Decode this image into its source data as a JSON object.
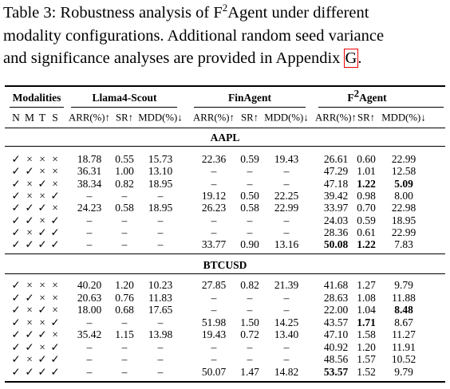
{
  "caption": [
    [
      "Table 3: Robustness analysis of F",
      {
        "text": "2",
        "style": "sup"
      },
      "Agent under different"
    ],
    [
      "modality configurations. Additional random seed variance"
    ],
    [
      "and significance analyses are provided in Appendix ",
      {
        "text": "G",
        "style": "link"
      },
      "."
    ]
  ],
  "table": {
    "groups": [
      {
        "name": [
          "Modalities"
        ],
        "metrics": [
          "N",
          "M",
          "T",
          "S"
        ]
      },
      {
        "name": [
          "Llama4-Scout"
        ],
        "metrics": [
          "ARR(%)↑",
          "SR↑",
          "MDD(%)↓"
        ]
      },
      {
        "name": [
          "FinAgent"
        ],
        "metrics": [
          "ARR(%)↑",
          "SR↑",
          "MDD(%)↓"
        ]
      },
      {
        "name": [
          "F",
          {
            "text": "2",
            "style": "sup"
          },
          "Agent"
        ],
        "metrics": [
          "ARR(%)↑",
          "SR↑",
          "MDD(%)↓"
        ]
      }
    ],
    "sections": [
      {
        "name": "AAPL",
        "rows": [
          {
            "modalities": [
              "✓",
              "×",
              "×",
              "×"
            ],
            "values": [
              "18.78",
              "0.55",
              "15.73",
              "22.36",
              "0.59",
              "19.43",
              "26.61",
              "0.60",
              "22.99"
            ]
          },
          {
            "modalities": [
              "✓",
              "✓",
              "×",
              "×"
            ],
            "values": [
              "36.31",
              "1.00",
              "13.10",
              "–",
              "–",
              "–",
              "47.29",
              "1.01",
              "12.58"
            ]
          },
          {
            "modalities": [
              "✓",
              "×",
              "✓",
              "×"
            ],
            "values": [
              "38.34",
              "0.82",
              "18.95",
              "–",
              "–",
              "–",
              "47.18",
              {
                "text": "1.22",
                "bold": true
              },
              {
                "text": "5.09",
                "bold": true
              }
            ]
          },
          {
            "modalities": [
              "✓",
              "×",
              "×",
              "✓"
            ],
            "values": [
              "–",
              "–",
              "–",
              "19.12",
              "0.50",
              "22.25",
              "39.42",
              "0.98",
              "8.00"
            ]
          },
          {
            "modalities": [
              "✓",
              "✓",
              "✓",
              "×"
            ],
            "values": [
              "24.23",
              "0.58",
              "18.95",
              "26.23",
              "0.58",
              "22.99",
              "33.97",
              "0.70",
              "22.98"
            ]
          },
          {
            "modalities": [
              "✓",
              "✓",
              "×",
              "✓"
            ],
            "values": [
              "–",
              "–",
              "–",
              "–",
              "–",
              "–",
              "24.03",
              "0.59",
              "18.95"
            ]
          },
          {
            "modalities": [
              "✓",
              "×",
              "✓",
              "✓"
            ],
            "values": [
              "–",
              "–",
              "–",
              "–",
              "–",
              "–",
              "28.36",
              "0.61",
              "22.99"
            ]
          },
          {
            "modalities": [
              "✓",
              "✓",
              "✓",
              "✓"
            ],
            "values": [
              "–",
              "–",
              "–",
              "33.77",
              "0.90",
              "13.16",
              {
                "text": "50.08",
                "bold": true
              },
              {
                "text": "1.22",
                "bold": true
              },
              "7.83"
            ]
          }
        ]
      },
      {
        "name": "BTCUSD",
        "rows": [
          {
            "modalities": [
              "✓",
              "×",
              "×",
              "×"
            ],
            "values": [
              "40.20",
              "1.20",
              "10.23",
              "27.85",
              "0.82",
              "21.39",
              "41.68",
              "1.27",
              "9.79"
            ]
          },
          {
            "modalities": [
              "✓",
              "✓",
              "×",
              "×"
            ],
            "values": [
              "20.63",
              "0.76",
              "11.83",
              "–",
              "–",
              "–",
              "28.63",
              "1.08",
              "11.88"
            ]
          },
          {
            "modalities": [
              "✓",
              "×",
              "✓",
              "×"
            ],
            "values": [
              "18.00",
              "0.68",
              "17.65",
              "–",
              "–",
              "–",
              "22.00",
              "1.04",
              {
                "text": "8.48",
                "bold": true
              }
            ]
          },
          {
            "modalities": [
              "✓",
              "×",
              "×",
              "✓"
            ],
            "values": [
              "–",
              "–",
              "–",
              "51.98",
              "1.50",
              "14.25",
              "43.57",
              {
                "text": "1.71",
                "bold": true
              },
              "8.67"
            ]
          },
          {
            "modalities": [
              "✓",
              "✓",
              "✓",
              "×"
            ],
            "values": [
              "35.42",
              "1.15",
              "13.98",
              "19.43",
              "0.72",
              "13.40",
              "47.10",
              "1.58",
              "11.27"
            ]
          },
          {
            "modalities": [
              "✓",
              "✓",
              "×",
              "✓"
            ],
            "values": [
              "–",
              "–",
              "–",
              "–",
              "–",
              "–",
              "40.92",
              "1.20",
              "11.91"
            ]
          },
          {
            "modalities": [
              "✓",
              "×",
              "✓",
              "✓"
            ],
            "values": [
              "–",
              "–",
              "–",
              "–",
              "–",
              "–",
              "48.56",
              "1.57",
              "10.52"
            ]
          },
          {
            "modalities": [
              "✓",
              "✓",
              "✓",
              "✓"
            ],
            "values": [
              "–",
              "–",
              "–",
              "50.07",
              "1.47",
              "14.82",
              {
                "text": "53.57",
                "bold": true
              },
              "1.52",
              "9.79"
            ]
          }
        ]
      }
    ]
  }
}
